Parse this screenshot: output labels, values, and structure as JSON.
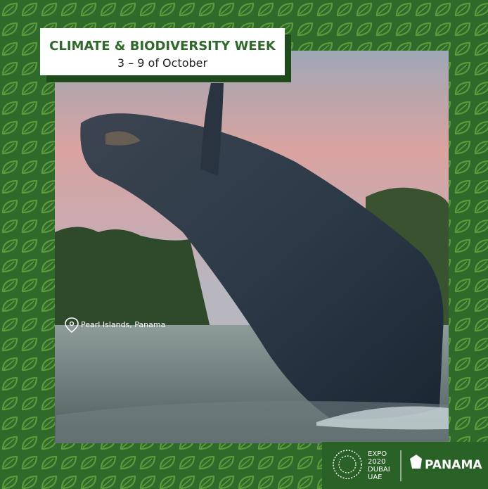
{
  "header": {
    "title": "CLIMATE & BIODIVERSITY WEEK",
    "dates": "3 – 9 of October"
  },
  "photo": {
    "location": "Pearl Islands, Panama"
  },
  "footer": {
    "expo": [
      "EXPO",
      "2020",
      "DUBAI",
      "UAE"
    ],
    "panama": "PANAMA"
  }
}
